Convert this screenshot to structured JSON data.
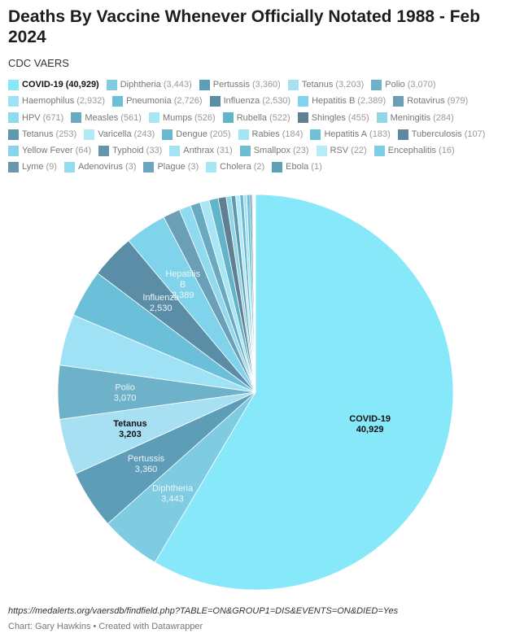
{
  "header": {
    "title": "Deaths By Vaccine Whenever Officially Notated 1988 - Feb 2024",
    "subtitle": "CDC VAERS"
  },
  "footer": {
    "source": "https://medalerts.org/vaersdb/findfield.php?TABLE=ON&GROUP1=DIS&EVENTS=ON&DIED=Yes",
    "credit": "Chart: Gary Hawkins • Created with Datawrapper"
  },
  "chart_data": {
    "type": "pie",
    "title": "Deaths By Vaccine Whenever Officially Notated 1988 - Feb 2024",
    "subtitle": "CDC VAERS",
    "legend_position": "top",
    "categories": [
      "COVID-19",
      "Diphtheria",
      "Pertussis",
      "Tetanus",
      "Polio",
      "Haemophilus",
      "Pneumonia",
      "Influenza",
      "Hepatitis B",
      "Rotavirus",
      "HPV",
      "Measles",
      "Mumps",
      "Rubella",
      "Shingles",
      "Meningitis",
      "Tetanus",
      "Varicella",
      "Dengue",
      "Rabies",
      "Hepatitis A",
      "Tuberculosis",
      "Yellow Fever",
      "Typhoid",
      "Anthrax",
      "Smallpox",
      "RSV",
      "Encephalitis",
      "Lyme",
      "Adenovirus",
      "Plague",
      "Cholera",
      "Ebola"
    ],
    "values": [
      40929,
      3443,
      3360,
      3203,
      3070,
      2932,
      2726,
      2530,
      2389,
      979,
      671,
      561,
      526,
      522,
      455,
      284,
      253,
      243,
      205,
      184,
      183,
      107,
      64,
      33,
      31,
      23,
      22,
      16,
      9,
      3,
      3,
      2,
      1
    ],
    "value_labels": [
      "40,929",
      "3,443",
      "3,360",
      "3,203",
      "3,070",
      "2,932",
      "2,726",
      "2,530",
      "2,389",
      "979",
      "671",
      "561",
      "526",
      "522",
      "455",
      "284",
      "253",
      "243",
      "205",
      "184",
      "183",
      "107",
      "64",
      "33",
      "31",
      "23",
      "22",
      "16",
      "9",
      "3",
      "3",
      "2",
      "1"
    ],
    "colors": [
      "#86e8f8",
      "#7ecbe2",
      "#5e9db8",
      "#a6e0f2",
      "#6eb2ca",
      "#9fe2f5",
      "#6cbfd8",
      "#5b8ea6",
      "#7fd3ea",
      "#6b9fb7",
      "#8fdaee",
      "#6aaac0",
      "#a8e6f6",
      "#62b4cb",
      "#607f93",
      "#8fd6e8",
      "#5f97ad",
      "#b1eaf7",
      "#6ab8cf",
      "#a5e4f4",
      "#6dc1d8",
      "#5d88a0",
      "#87d4ec",
      "#6595ab",
      "#a3e3f4",
      "#70bcd2",
      "#b6ecf8",
      "#7dcfe6",
      "#6a97ad",
      "#93ddf0",
      "#6aa6be",
      "#a6e6f6",
      "#5f9fb8"
    ],
    "slice_labels": [
      {
        "index": 0,
        "name": "COVID-19",
        "value": "40,929",
        "dark": true
      },
      {
        "index": 1,
        "name": "Diphtheria",
        "value": "3,443",
        "dark": false
      },
      {
        "index": 2,
        "name": "Pertussis",
        "value": "3,360",
        "dark": false
      },
      {
        "index": 3,
        "name": "Tetanus",
        "value": "3,203",
        "dark": true
      },
      {
        "index": 4,
        "name": "Polio",
        "value": "3,070",
        "dark": false
      },
      {
        "index": 7,
        "name": "Influenza",
        "value": "2,530",
        "dark": false
      },
      {
        "index": 8,
        "name": "Hepatitis B",
        "value": "2,389",
        "dark": false
      }
    ]
  }
}
